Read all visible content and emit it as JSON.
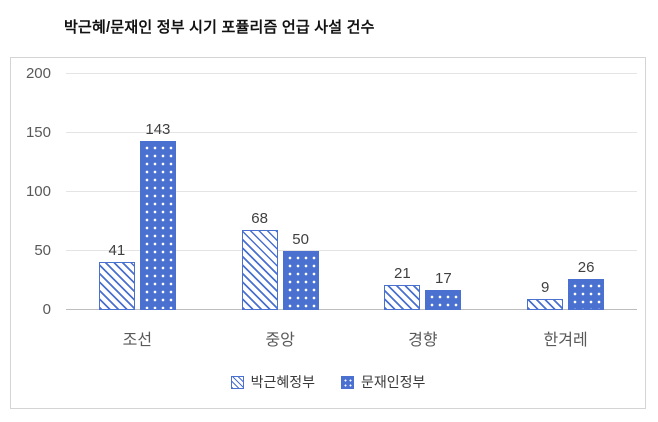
{
  "chart_data": {
    "type": "bar",
    "title": "박근혜/문재인 정부 시기 포퓰리즘 언급 사설 건수",
    "categories": [
      "조선",
      "중앙",
      "경향",
      "한겨레"
    ],
    "series": [
      {
        "name": "박근혜정부",
        "pattern": "hatch",
        "values": [
          41,
          68,
          21,
          9
        ]
      },
      {
        "name": "문재인정부",
        "pattern": "dots",
        "values": [
          143,
          50,
          17,
          26
        ]
      }
    ],
    "xlabel": "",
    "ylabel": "",
    "ylim": [
      0,
      200
    ],
    "yticks": [
      0,
      50,
      100,
      150,
      200
    ],
    "grid": true,
    "legend_position": "bottom",
    "colors": {
      "bar_blue": "#4a71d0",
      "grid_line": "#e4e4e4",
      "axis_line": "#bdbdbd",
      "axis_text": "#595959",
      "value_label": "#404040",
      "title_text": "#121212",
      "box_border": "#d4d4d4"
    }
  }
}
